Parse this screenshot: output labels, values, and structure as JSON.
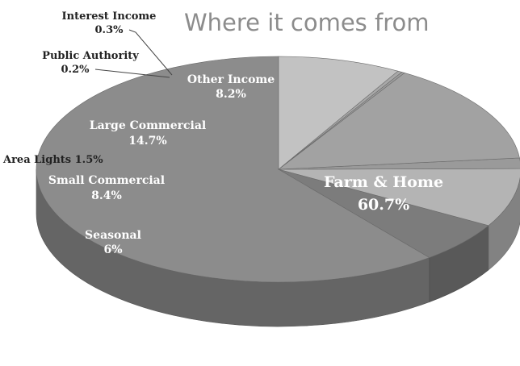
{
  "chart_data": {
    "type": "pie",
    "title": "Where it comes from",
    "slices": [
      {
        "name": "Farm & Home",
        "value_label": "60.7%",
        "value": 60.7,
        "color": "#8c8c8c"
      },
      {
        "name": "Seasonal",
        "value_label": "6%",
        "value": 6,
        "color": "#7c7c7c"
      },
      {
        "name": "Small Commercial",
        "value_label": "8.4%",
        "value": 8.4,
        "color": "#b4b4b4"
      },
      {
        "name": "Area Lights",
        "value_label": "1.5%",
        "value": 1.5,
        "color": "#9a9a9a"
      },
      {
        "name": "Large Commercial",
        "value_label": "14.7%",
        "value": 14.7,
        "color": "#a2a2a2"
      },
      {
        "name": "Public Authority",
        "value_label": "0.2%",
        "value": 0.2,
        "color": "#9e9e9e"
      },
      {
        "name": "Interest Income",
        "value_label": "0.3%",
        "value": 0.3,
        "color": "#a8a8a8"
      },
      {
        "name": "Other Income",
        "value_label": "8.2%",
        "value": 8.2,
        "color": "#c2c2c2"
      }
    ]
  }
}
